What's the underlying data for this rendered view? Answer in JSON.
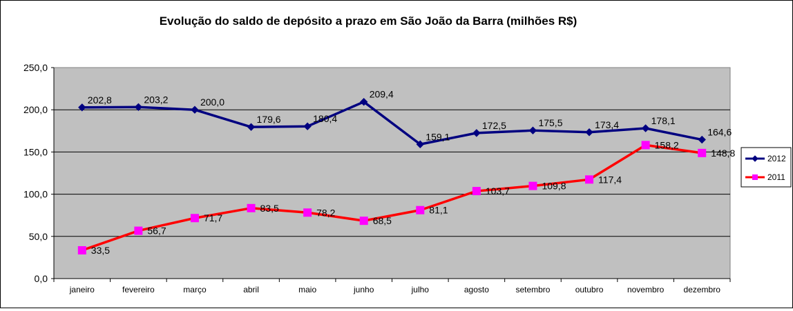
{
  "chart_data": {
    "type": "line",
    "title": "Evolução do saldo de depósito a prazo em São João da Barra (milhões R$)",
    "xlabel": "",
    "ylabel": "",
    "categories": [
      "janeiro",
      "fevereiro",
      "março",
      "abril",
      "maio",
      "junho",
      "julho",
      "agosto",
      "setembro",
      "outubro",
      "novembro",
      "dezembro"
    ],
    "ylim": [
      0,
      250
    ],
    "yticks": [
      "0,0",
      "50,0",
      "100,0",
      "150,0",
      "200,0",
      "250,0"
    ],
    "grid": true,
    "legend_position": "right",
    "plot_background": "#C0C0C0",
    "series": [
      {
        "name": "2012",
        "color": "#000080",
        "marker": "diamond",
        "values": [
          202.8,
          203.2,
          200.0,
          179.6,
          180.4,
          209.4,
          159.1,
          172.5,
          175.5,
          173.4,
          178.1,
          164.6
        ],
        "labels": [
          "202,8",
          "203,2",
          "200,0",
          "179,6",
          "180,4",
          "209,4",
          "159,1",
          "172,5",
          "175,5",
          "173,4",
          "178,1",
          "164,6"
        ]
      },
      {
        "name": "2011",
        "color": "#FF0000",
        "marker_color": "#FF00FF",
        "marker": "square",
        "values": [
          33.5,
          56.7,
          71.7,
          83.5,
          78.2,
          68.5,
          81.1,
          103.7,
          109.8,
          117.4,
          158.2,
          148.8
        ],
        "labels": [
          "33,5",
          "56,7",
          "71,7",
          "83,5",
          "78,2",
          "68,5",
          "81,1",
          "103,7",
          "109,8",
          "117,4",
          "158,2",
          "148,8"
        ]
      }
    ]
  }
}
